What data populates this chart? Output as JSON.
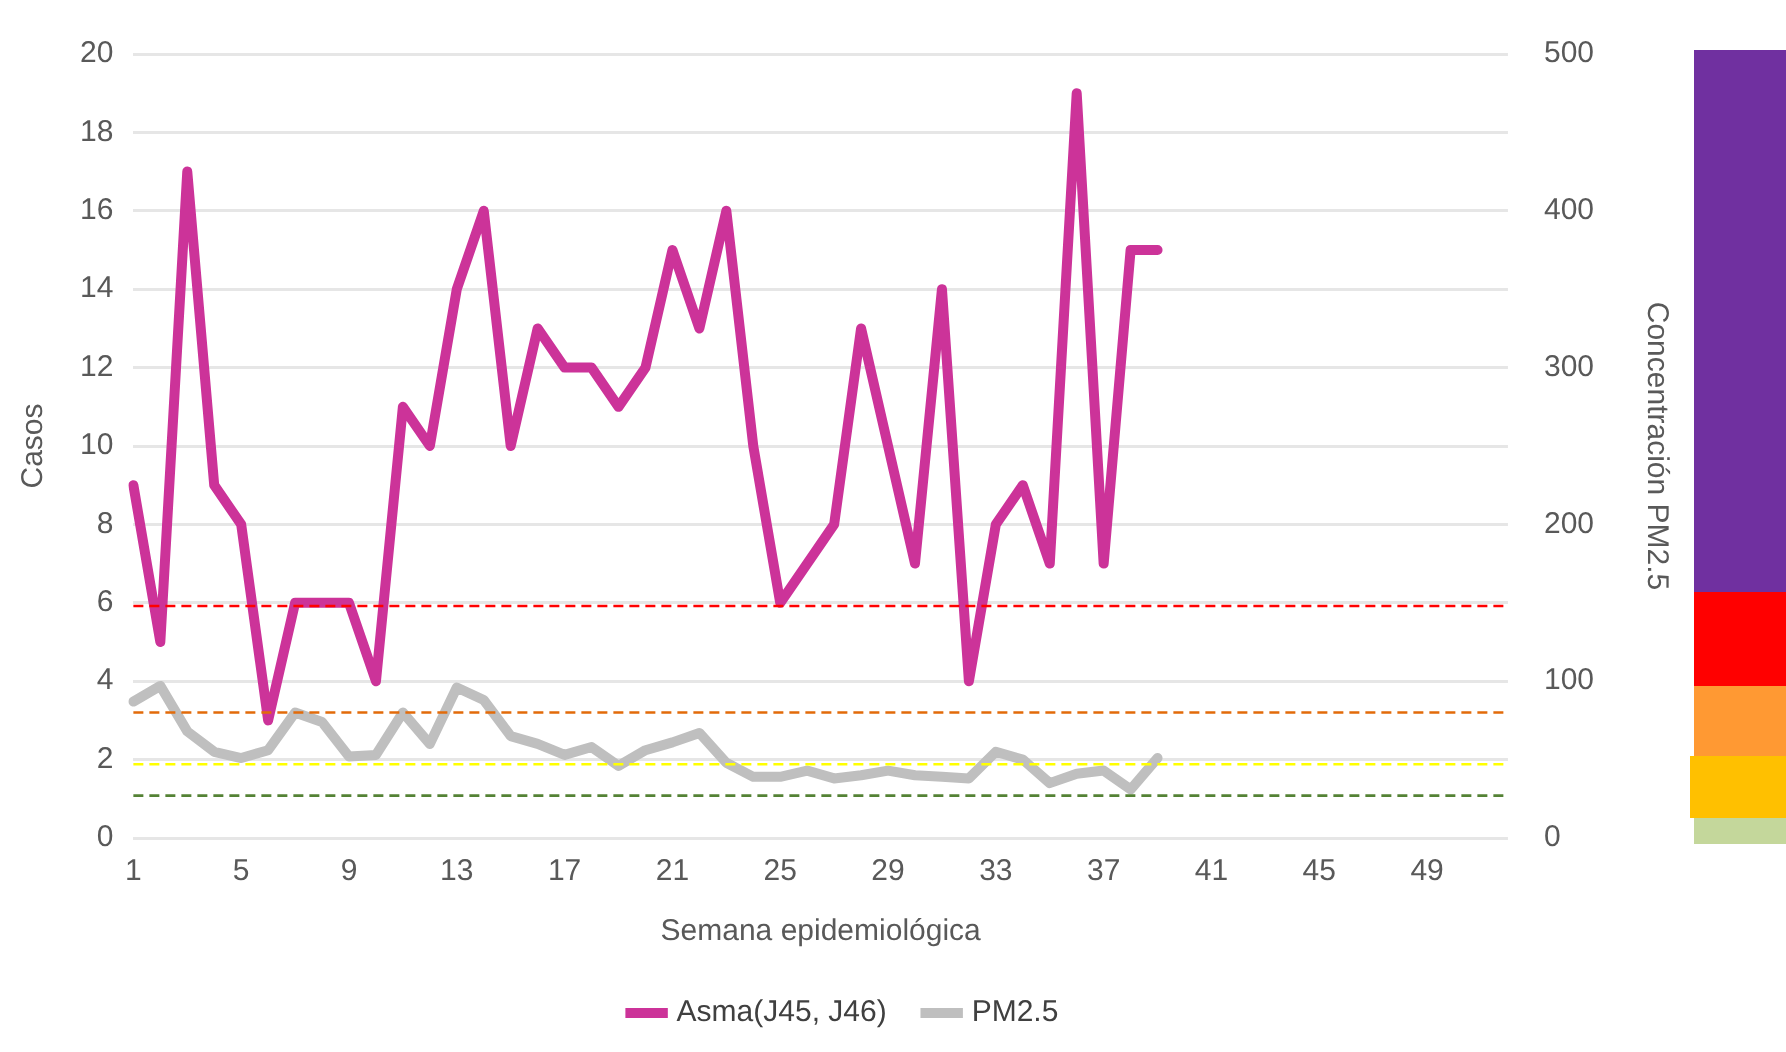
{
  "chart_data": {
    "type": "line",
    "xlabel": "Semana epidemiológica",
    "ylabel": "Casos",
    "y2label": "Concentración PM2.5",
    "categories": [
      "1",
      null,
      null,
      null,
      "5",
      null,
      null,
      null,
      "9",
      null,
      null,
      null,
      "13",
      null,
      null,
      null,
      "17",
      null,
      null,
      null,
      "21",
      null,
      null,
      null,
      "25",
      null,
      null,
      null,
      "29",
      null,
      null,
      null,
      "33",
      null,
      null,
      null,
      "37",
      null,
      null,
      null,
      "41",
      null,
      null,
      null,
      "45",
      null,
      null,
      null,
      "49",
      null,
      null,
      null
    ],
    "series": [
      {
        "name": "Asma(J45, J46)",
        "color": "#cc3399",
        "values": [
          9,
          5,
          17,
          9,
          8,
          3,
          6,
          6,
          6,
          4,
          11,
          10,
          14,
          16,
          10,
          13,
          12,
          12,
          11,
          12,
          15,
          13,
          16,
          10,
          6,
          7,
          8,
          13,
          10,
          7,
          14,
          4,
          8,
          9,
          7,
          19,
          7,
          15,
          15,
          null,
          null,
          null,
          null,
          null,
          null,
          null,
          null,
          null,
          null,
          null,
          null,
          null
        ]
      },
      {
        "name": "PM2.5",
        "color": "#bfbfbf",
        "axis": "y2",
        "values": [
          87,
          97,
          68,
          55,
          51,
          56,
          80,
          74,
          52,
          53,
          80,
          60,
          96,
          88,
          65,
          60,
          53,
          58,
          46,
          56,
          61,
          67,
          48,
          39,
          39,
          43,
          38,
          40,
          43,
          40,
          39,
          38,
          55,
          50,
          35,
          41,
          43,
          31,
          51,
          null,
          null,
          null,
          null,
          null,
          null,
          null,
          null,
          null,
          null,
          null,
          null,
          null
        ]
      }
    ],
    "ylim": [
      0,
      20
    ],
    "yticks": [
      0,
      2,
      4,
      6,
      8,
      10,
      12,
      14,
      16,
      18,
      20
    ],
    "y2lim": [
      0,
      500
    ],
    "y2ticks": [
      0,
      100,
      200,
      300,
      400,
      500
    ],
    "ref_lines": [
      {
        "axis": "y2",
        "value": 148,
        "color": "#ff0000",
        "line_style": "dashed"
      },
      {
        "axis": "y2",
        "value": 80,
        "color": "#e26b0a",
        "line_style": "dashed"
      },
      {
        "axis": "y2",
        "value": 47,
        "color": "#ffff00",
        "line_style": "dashed"
      },
      {
        "axis": "y2",
        "value": 27,
        "color": "#548235",
        "line_style": "dashed"
      }
    ],
    "grid": "y",
    "legend": "bottom",
    "marker": "none",
    "line_style": "solid"
  }
}
